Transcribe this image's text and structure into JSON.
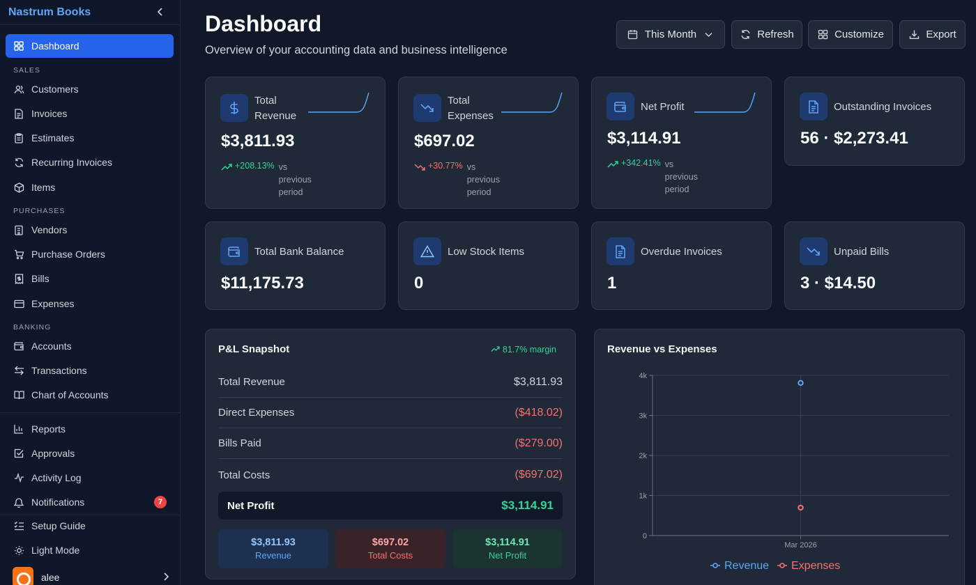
{
  "app": {
    "brand": "Nastrum Books"
  },
  "sidebar": {
    "sections": {
      "sales": "SALES",
      "purchases": "PURCHASES",
      "banking": "BANKING"
    },
    "items": {
      "dashboard": "Dashboard",
      "customers": "Customers",
      "invoices": "Invoices",
      "estimates": "Estimates",
      "recurring": "Recurring Invoices",
      "items": "Items",
      "vendors": "Vendors",
      "purchase_orders": "Purchase Orders",
      "bills": "Bills",
      "expenses": "Expenses",
      "accounts": "Accounts",
      "transactions": "Transactions",
      "chart_of_accounts": "Chart of Accounts",
      "reports": "Reports",
      "approvals": "Approvals",
      "activity_log": "Activity Log",
      "notifications": "Notifications",
      "setup_guide": "Setup Guide",
      "light_mode": "Light Mode"
    },
    "notifications_count": "7",
    "user": "alee"
  },
  "header": {
    "title": "Dashboard",
    "subtitle": "Overview of your accounting data and business intelligence",
    "period": "This Month",
    "refresh": "Refresh",
    "customize": "Customize",
    "export": "Export"
  },
  "kpis": {
    "revenue": {
      "title1": "Total",
      "title2": "Revenue",
      "value": "$3,811.93",
      "pct": "+208.13%",
      "vs1": "vs",
      "vs2": "previous",
      "vs3": "period"
    },
    "expenses": {
      "title1": "Total",
      "title2": "Expenses",
      "value": "$697.02",
      "pct": "+30.77%",
      "vs1": "vs",
      "vs2": "previous",
      "vs3": "period"
    },
    "profit": {
      "title": "Net Profit",
      "value": "$3,114.91",
      "pct": "+342.41%",
      "vs1": "vs",
      "vs2": "previous",
      "vs3": "period"
    },
    "outstanding": {
      "title": "Outstanding Invoices",
      "value": "56 · $2,273.41"
    },
    "bank": {
      "title": "Total Bank Balance",
      "value": "$11,175.73"
    },
    "low_stock": {
      "title": "Low Stock Items",
      "value": "0"
    },
    "overdue": {
      "title": "Overdue Invoices",
      "value": "1"
    },
    "unpaid": {
      "title": "Unpaid Bills",
      "value": "3 · $14.50"
    }
  },
  "pl": {
    "title": "P&L Snapshot",
    "margin": "81.7% margin",
    "rows": [
      {
        "label": "Total Revenue",
        "amount": "$3,811.93"
      },
      {
        "label": "Direct Expenses",
        "amount": "($418.02)"
      },
      {
        "label": "Bills Paid",
        "amount": "($279.00)"
      },
      {
        "label": "Total Costs",
        "amount": "($697.02)"
      }
    ],
    "net_label": "Net Profit",
    "net_amount": "$3,114.91",
    "summary": [
      {
        "value": "$3,811.93",
        "label": "Revenue"
      },
      {
        "value": "$697.02",
        "label": "Total Costs"
      },
      {
        "value": "$3,114.91",
        "label": "Net Profit"
      }
    ]
  },
  "colors": {
    "accent": "#2563eb",
    "revenue": "#60a5fa",
    "expenses": "#f87171",
    "profit": "#34d399"
  },
  "chart_data": {
    "type": "line",
    "title": "Revenue vs Expenses",
    "x": [
      "Mar 2026"
    ],
    "series": [
      {
        "name": "Revenue",
        "values": [
          3811.93
        ],
        "color": "#60a5fa"
      },
      {
        "name": "Expenses",
        "values": [
          697.02
        ],
        "color": "#f87171"
      }
    ],
    "ylim": [
      0,
      4000
    ],
    "yticks": [
      "0",
      "1k",
      "2k",
      "3k",
      "4k"
    ],
    "grid": true,
    "legend": "bottom"
  }
}
